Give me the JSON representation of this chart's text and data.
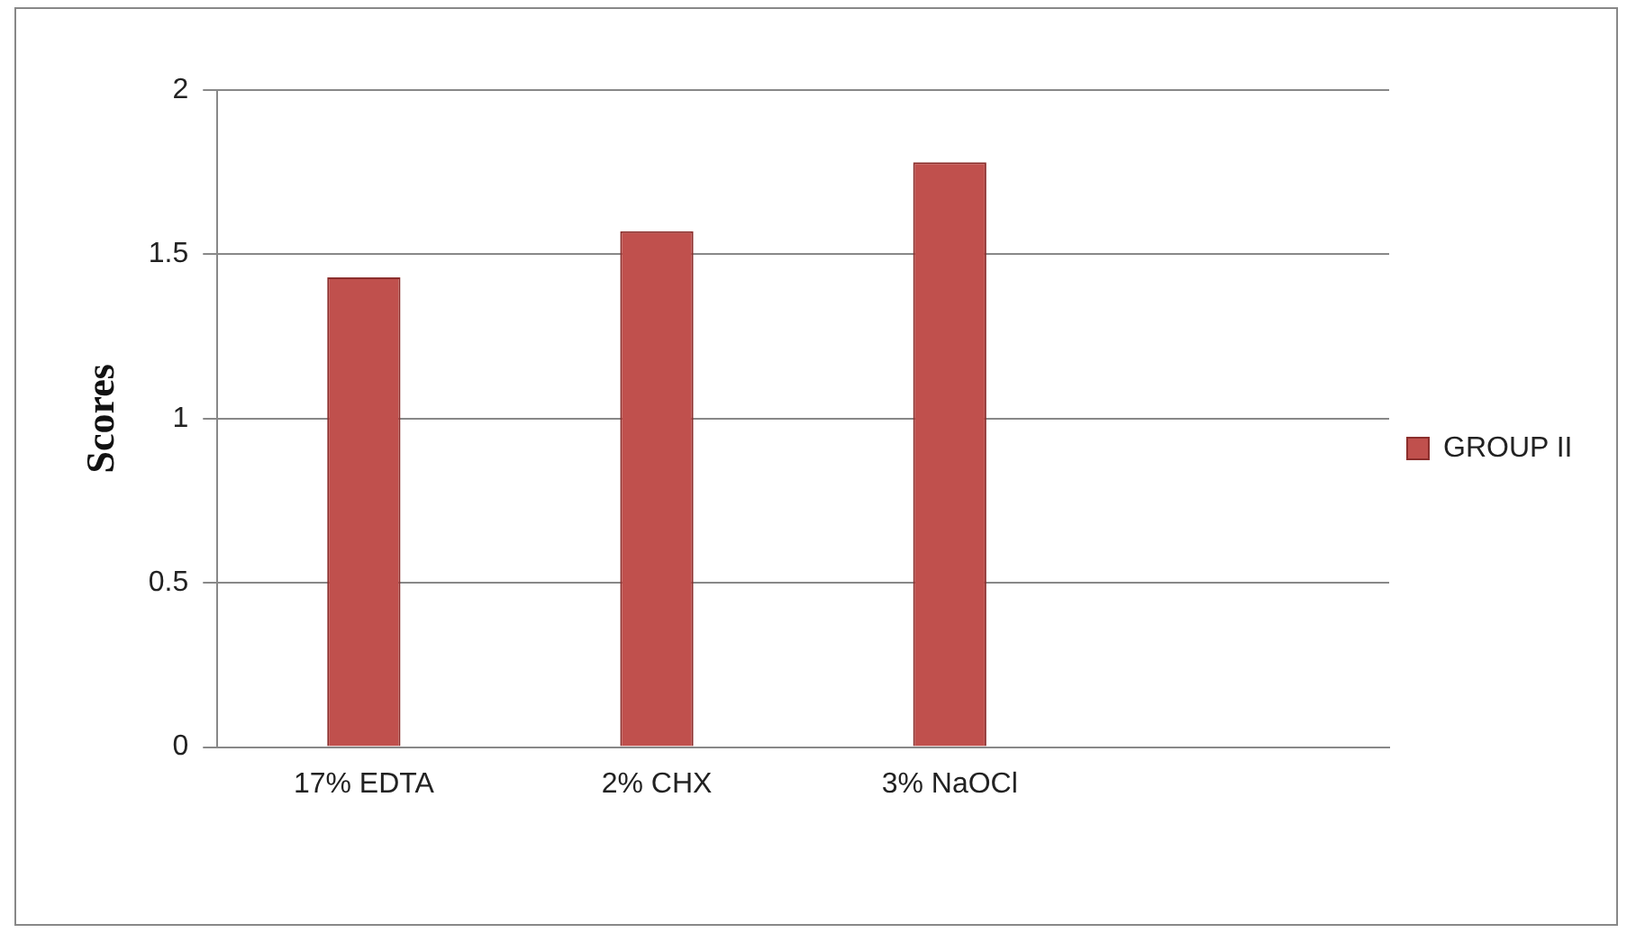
{
  "chart_data": {
    "type": "bar",
    "ylabel": "Scores",
    "categories": [
      "17% EDTA",
      "2% CHX",
      "3% NaOCl",
      null
    ],
    "series": [
      {
        "name": "GROUP II",
        "color": "#c0504d",
        "values": [
          1.43,
          1.57,
          1.78,
          null
        ]
      }
    ],
    "ylim": [
      0,
      2
    ],
    "yticks": [
      0,
      0.5,
      1,
      1.5,
      2
    ],
    "grid": "y",
    "legend": "right"
  }
}
